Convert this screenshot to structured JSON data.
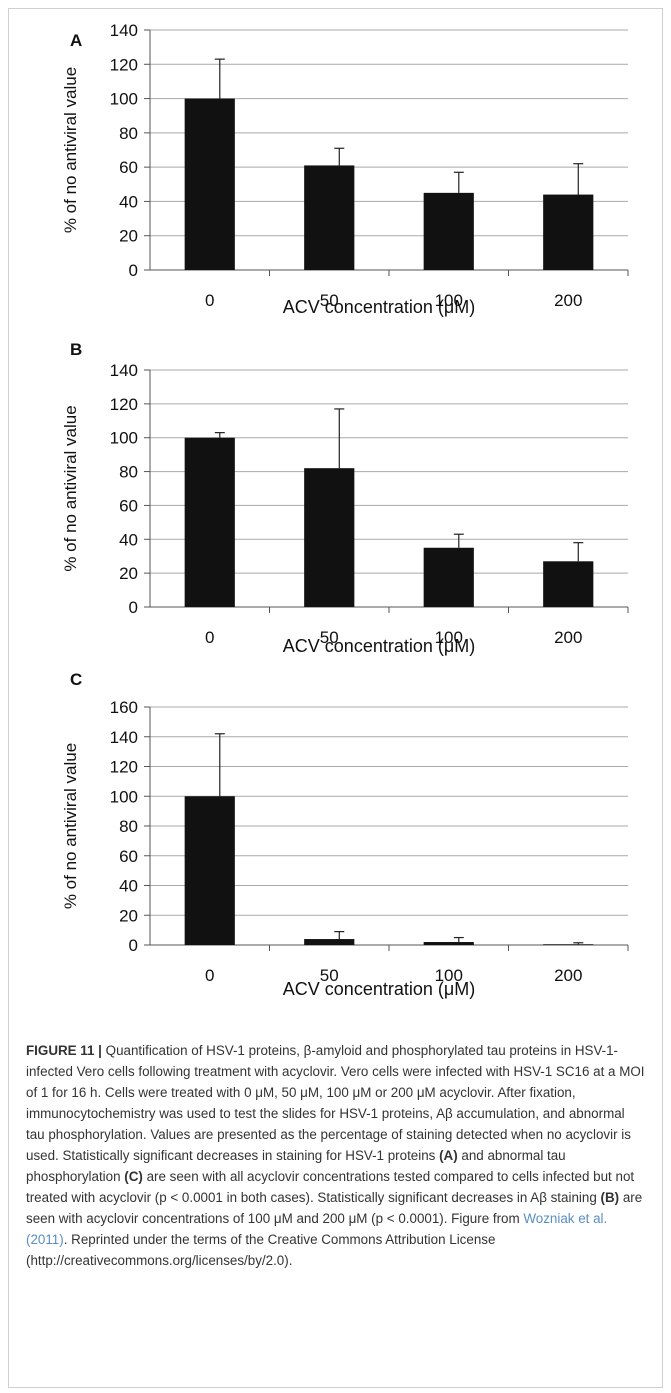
{
  "chart_data": [
    {
      "type": "bar",
      "panel_label": "A",
      "categories": [
        "0",
        "50",
        "100",
        "200"
      ],
      "values": [
        100,
        61,
        45,
        44
      ],
      "error_up": [
        23,
        10,
        12,
        18
      ],
      "ylabel": "% of no antiviral value",
      "xlabel": "ACV concentration (μM)",
      "ylim": [
        0,
        140
      ],
      "yticks": [
        "0",
        "20",
        "40",
        "60",
        "80",
        "100",
        "120",
        "140"
      ],
      "grid": true,
      "bar_color": "#111111"
    },
    {
      "type": "bar",
      "panel_label": "B",
      "categories": [
        "0",
        "50",
        "100",
        "200"
      ],
      "values": [
        100,
        82,
        35,
        27
      ],
      "error_up": [
        3,
        35,
        8,
        11
      ],
      "ylabel": "% of no antiviral value",
      "xlabel": "ACV concentration (μM)",
      "ylim": [
        0,
        140
      ],
      "yticks": [
        "0",
        "20",
        "40",
        "60",
        "80",
        "100",
        "120",
        "140"
      ],
      "grid": true,
      "bar_color": "#111111"
    },
    {
      "type": "bar",
      "panel_label": "C",
      "categories": [
        "0",
        "50",
        "100",
        "200"
      ],
      "values": [
        100,
        4,
        2,
        0.5
      ],
      "error_up": [
        42,
        5,
        3,
        1
      ],
      "ylabel": "% of no antiviral value",
      "xlabel": "ACV concentration (μM)",
      "ylim": [
        0,
        160
      ],
      "yticks": [
        "0",
        "20",
        "40",
        "60",
        "80",
        "100",
        "120",
        "140",
        "160"
      ],
      "grid": true,
      "bar_color": "#111111"
    }
  ],
  "caption": {
    "figure_label": "FIGURE 11 |",
    "text_1": " Quantification of HSV-1 proteins, β-amyloid and phosphorylated tau proteins in HSV-1-infected Vero cells following treatment with acyclovir. Vero cells were infected with HSV-1 SC16 at a MOI of 1 for 16 h. Cells were treated with 0 μM, 50 μM, 100 μM or 200 μM acyclovir. After fixation, immunocytochemistry was used to test the slides for HSV-1 proteins, Aβ accumulation, and abnormal tau phosphorylation. Values are presented as the percentage of staining detected when no acyclovir is used. Statistically significant decreases in staining for HSV-1 proteins ",
    "ref_a": "(A)",
    "text_2": " and abnormal tau phosphorylation ",
    "ref_c": "(C)",
    "text_3": " are seen with all acyclovir concentrations tested compared to cells infected but not treated with acyclovir (p < 0.0001 in both cases). Statistically significant decreases in Aβ staining ",
    "ref_b": "(B)",
    "text_4": " are seen with acyclovir concentrations of 100 μM and 200 μM (p < 0.0001). Figure from ",
    "link_text": "Wozniak et al. (2011)",
    "text_5": ". Reprinted under the terms of the Creative Commons Attribution License (http://creativecommons.org/licenses/by/2.0)."
  }
}
